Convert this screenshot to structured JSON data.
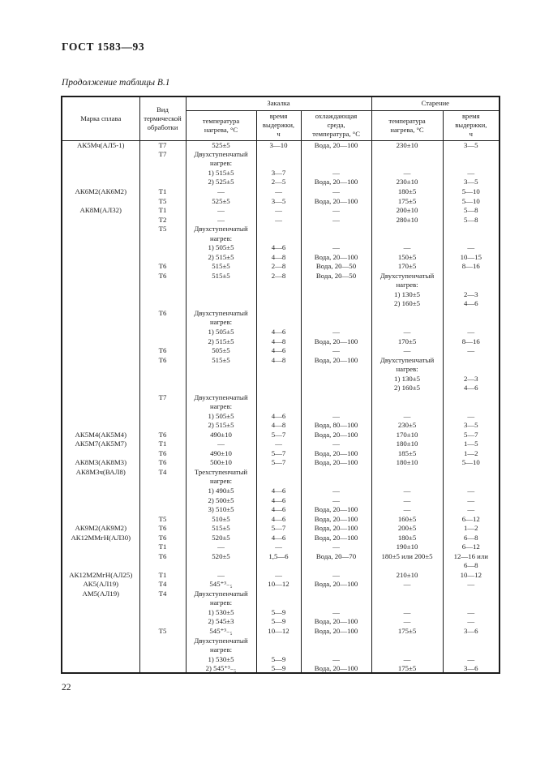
{
  "page": {
    "doc_number": "ГОСТ 1583—93",
    "table_caption": "Продолжение таблицы В.1",
    "page_number": "22"
  },
  "table": {
    "group_headers": {
      "quenching": "Закалка",
      "aging": "Старение"
    },
    "columns": [
      "Марка сплава",
      "Вид\nтермической\nобработки",
      "температура\nнагрева, °С",
      "время\nвыдержки,\nч",
      "охлаждающая\nсреда,\nтемпература, °С",
      "температура\nнагрева, °С",
      "время\nвыдержки,\nч"
    ],
    "rows": [
      [
        "АК5Мч(АЛ5-1)",
        "Т7",
        "525±5",
        "3—10",
        "Вода, 20—100",
        "230±10",
        "3—5"
      ],
      [
        "",
        "Т7",
        "Двухступенчатый",
        "",
        "",
        "",
        ""
      ],
      [
        "",
        "",
        "нагрев:",
        "",
        "",
        "",
        ""
      ],
      [
        "",
        "",
        "1) 515±5",
        "3—7",
        "—",
        "—",
        "—"
      ],
      [
        "",
        "",
        "2) 525±5",
        "2—5",
        "Вода, 20—100",
        "230±10",
        "3—5"
      ],
      [
        "АК6М2(АК6М2)",
        "Т1",
        "—",
        "—",
        "—",
        "180±5",
        "5—10"
      ],
      [
        "",
        "Т5",
        "525±5",
        "3—5",
        "Вода, 20—100",
        "175±5",
        "5—10"
      ],
      [
        "АК8М(АЛ32)",
        "Т1",
        "—",
        "—",
        "—",
        "200±10",
        "5—8"
      ],
      [
        "",
        "Т2",
        "—",
        "—",
        "—",
        "280±10",
        "5—8"
      ],
      [
        "",
        "Т5",
        "Двухступенчатый",
        "",
        "",
        "",
        ""
      ],
      [
        "",
        "",
        "нагрев:",
        "",
        "",
        "",
        ""
      ],
      [
        "",
        "",
        "1) 505±5",
        "4—6",
        "—",
        "—",
        "—"
      ],
      [
        "",
        "",
        "2) 515±5",
        "4—8",
        "Вода, 20—100",
        "150±5",
        "10—15"
      ],
      [
        "",
        "Т6",
        "515±5",
        "2—8",
        "Вода, 20—50",
        "170±5",
        "8—16"
      ],
      [
        "",
        "Т6",
        "515±5",
        "2—8",
        "Вода, 20—50",
        "Двухступенчатый",
        ""
      ],
      [
        "",
        "",
        "",
        "",
        "",
        "нагрев:",
        ""
      ],
      [
        "",
        "",
        "",
        "",
        "",
        "1) 130±5",
        "2—3"
      ],
      [
        "",
        "",
        "",
        "",
        "",
        "2) 160±5",
        "4—6"
      ],
      [
        "",
        "Т6",
        "Двухступенчатый",
        "",
        "",
        "",
        ""
      ],
      [
        "",
        "",
        "нагрев:",
        "",
        "",
        "",
        ""
      ],
      [
        "",
        "",
        "1) 505±5",
        "4—6",
        "—",
        "—",
        "—"
      ],
      [
        "",
        "",
        "2) 515±5",
        "4—8",
        "Вода, 20—100",
        "170±5",
        "8—16"
      ],
      [
        "",
        "Т6",
        "505±5",
        "4—6",
        "—",
        "—",
        "—"
      ],
      [
        "",
        "Т6",
        "515±5",
        "4—8",
        "Вода, 20—100",
        "Двухступенчатый",
        ""
      ],
      [
        "",
        "",
        "",
        "",
        "",
        "нагрев:",
        ""
      ],
      [
        "",
        "",
        "",
        "",
        "",
        "1) 130±5",
        "2—3"
      ],
      [
        "",
        "",
        "",
        "",
        "",
        "2) 160±5",
        "4—6"
      ],
      [
        "",
        "Т7",
        "Двухступенчатый",
        "",
        "",
        "",
        ""
      ],
      [
        "",
        "",
        "нагрев:",
        "",
        "",
        "",
        ""
      ],
      [
        "",
        "",
        "1) 505±5",
        "4—6",
        "—",
        "—",
        "—"
      ],
      [
        "",
        "",
        "2) 515±5",
        "4—8",
        "Вода, 80—100",
        "230±5",
        "3—5"
      ],
      [
        "АК5М4(АК5М4)",
        "Т6",
        "490±10",
        "5—7",
        "Вода, 20—100",
        "170±10",
        "5—7"
      ],
      [
        "АК5М7(АК5М7)",
        "Т1",
        "—",
        "—",
        "—",
        "180±10",
        "1—5"
      ],
      [
        "",
        "Т6",
        "490±10",
        "5—7",
        "Вода, 20—100",
        "185±5",
        "1—2"
      ],
      [
        "АК8М3(АК8М3)",
        "Т6",
        "500±10",
        "5—7",
        "Вода, 20—100",
        "180±10",
        "5—10"
      ],
      [
        "АК8М3ч(ВАЛ8)",
        "Т4",
        "Трехступенчатый",
        "",
        "",
        "",
        ""
      ],
      [
        "",
        "",
        "нагрев:",
        "",
        "",
        "",
        ""
      ],
      [
        "",
        "",
        "1) 490±5",
        "4—6",
        "—",
        "—",
        "—"
      ],
      [
        "",
        "",
        "2) 500±5",
        "4—6",
        "—",
        "—",
        "—"
      ],
      [
        "",
        "",
        "3) 510±5",
        "4—6",
        "Вода, 20—100",
        "—",
        "—"
      ],
      [
        "",
        "Т5",
        "510±5",
        "4—6",
        "Вода, 20—100",
        "160±5",
        "6—12"
      ],
      [
        "АК9М2(АК9М2)",
        "Т6",
        "515±5",
        "5—7",
        "Вода, 20—100",
        "200±5",
        "1—2"
      ],
      [
        "АК12ММгН(АЛ30)",
        "Т6",
        "520±5",
        "4—6",
        "Вода, 20—100",
        "180±5",
        "6—8"
      ],
      [
        "",
        "Т1",
        "—",
        "—",
        "—",
        "190±10",
        "6—12"
      ],
      [
        "",
        "Т6",
        "520±5",
        "1,5—6",
        "Вода, 20—70",
        "180±5 или 200±5",
        "12—16 или"
      ],
      [
        "",
        "",
        "",
        "",
        "",
        "",
        "6—8"
      ],
      [
        "АК12М2МгН(АЛ25)",
        "Т1",
        "—",
        "—",
        "—",
        "210±10",
        "10—12"
      ],
      [
        "АК5(АЛ19)",
        "Т4",
        "545⁺³₋₅",
        "10—12",
        "Вода, 20—100",
        "—",
        "—"
      ],
      [
        "АМ5(АЛ19)",
        "Т4",
        "Двухступенчатый",
        "",
        "",
        "",
        ""
      ],
      [
        "",
        "",
        "нагрев:",
        "",
        "",
        "",
        ""
      ],
      [
        "",
        "",
        "1) 530±5",
        "5—9",
        "—",
        "—",
        "—"
      ],
      [
        "",
        "",
        "2) 545±3",
        "5—9",
        "Вода, 20—100",
        "—",
        "—"
      ],
      [
        "",
        "Т5",
        "545⁺³₋₅",
        "10—12",
        "Вода, 20—100",
        "175±5",
        "3—6"
      ],
      [
        "",
        "",
        "Двухступенчатый",
        "",
        "",
        "",
        ""
      ],
      [
        "",
        "",
        "нагрев:",
        "",
        "",
        "",
        ""
      ],
      [
        "",
        "",
        "1) 530±5",
        "5—9",
        "—",
        "—",
        "—"
      ],
      [
        "",
        "",
        "2) 545⁺³₋₅",
        "5—9",
        "Вода, 20—100",
        "175±5",
        "3—6"
      ]
    ]
  }
}
